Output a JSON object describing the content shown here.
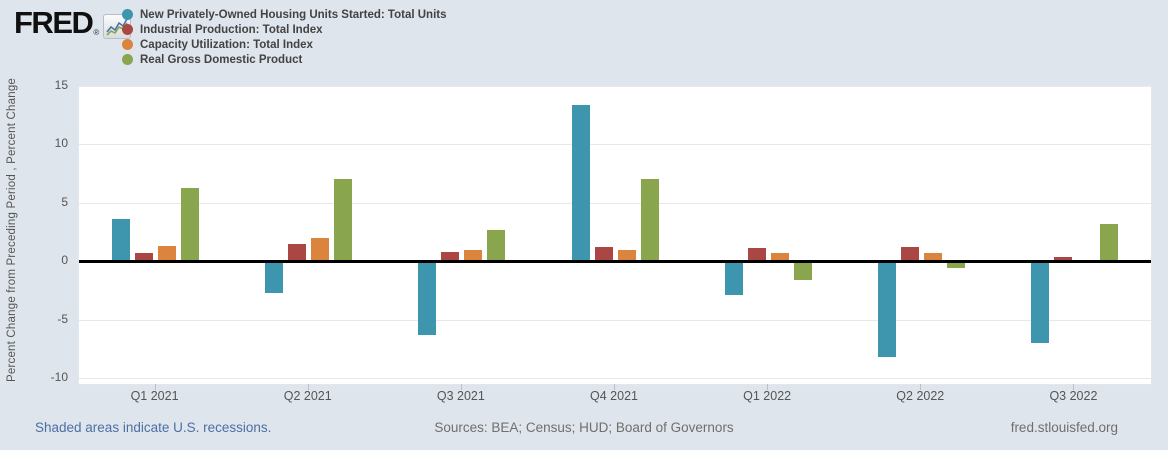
{
  "brand": {
    "name": "FRED",
    "reg": "®",
    "icon": "line-chart-icon"
  },
  "colors": {
    "background": "#dfe5ec",
    "plot_background": "#ffffff",
    "gridline": "#e8e8e8",
    "zero_line": "#000000",
    "axis_text": "#555555",
    "legend_text": "#434343",
    "link": "#4b6fa5",
    "footer_text": "#6f6f6f"
  },
  "chart_data": {
    "type": "bar",
    "title": "",
    "xlabel": "",
    "ylabel": "Percent Change from Preceding Period , Percent Change",
    "categories": [
      "Q1 2021",
      "Q2 2021",
      "Q3 2021",
      "Q4 2021",
      "Q1 2022",
      "Q2 2022",
      "Q3 2022"
    ],
    "series": [
      {
        "name": "New Privately-Owned Housing Units Started: Total Units",
        "color": "#3d96ae",
        "values": [
          3.6,
          -2.7,
          -6.3,
          13.4,
          -2.9,
          -8.2,
          -7.0
        ]
      },
      {
        "name": "Industrial Production: Total Index",
        "color": "#aa4643",
        "values": [
          0.7,
          1.5,
          0.8,
          1.2,
          1.1,
          1.2,
          0.4
        ]
      },
      {
        "name": "Capacity Utilization: Total Index",
        "color": "#db843d",
        "values": [
          1.3,
          2.0,
          1.0,
          1.0,
          0.7,
          0.7,
          0.0
        ]
      },
      {
        "name": "Real Gross Domestic Product",
        "color": "#89a54e",
        "values": [
          6.3,
          7.0,
          2.7,
          7.0,
          -1.6,
          -0.6,
          3.2
        ]
      }
    ],
    "yticks": [
      15,
      10,
      5,
      0,
      -5,
      -10
    ],
    "ylim": [
      -10.5,
      15
    ],
    "grid": true,
    "legend_position": "top-left"
  },
  "footer": {
    "note": "Shaded areas indicate U.S. recessions.",
    "sources": "Sources: BEA; Census; HUD; Board of Governors",
    "site": "fred.stlouisfed.org"
  }
}
